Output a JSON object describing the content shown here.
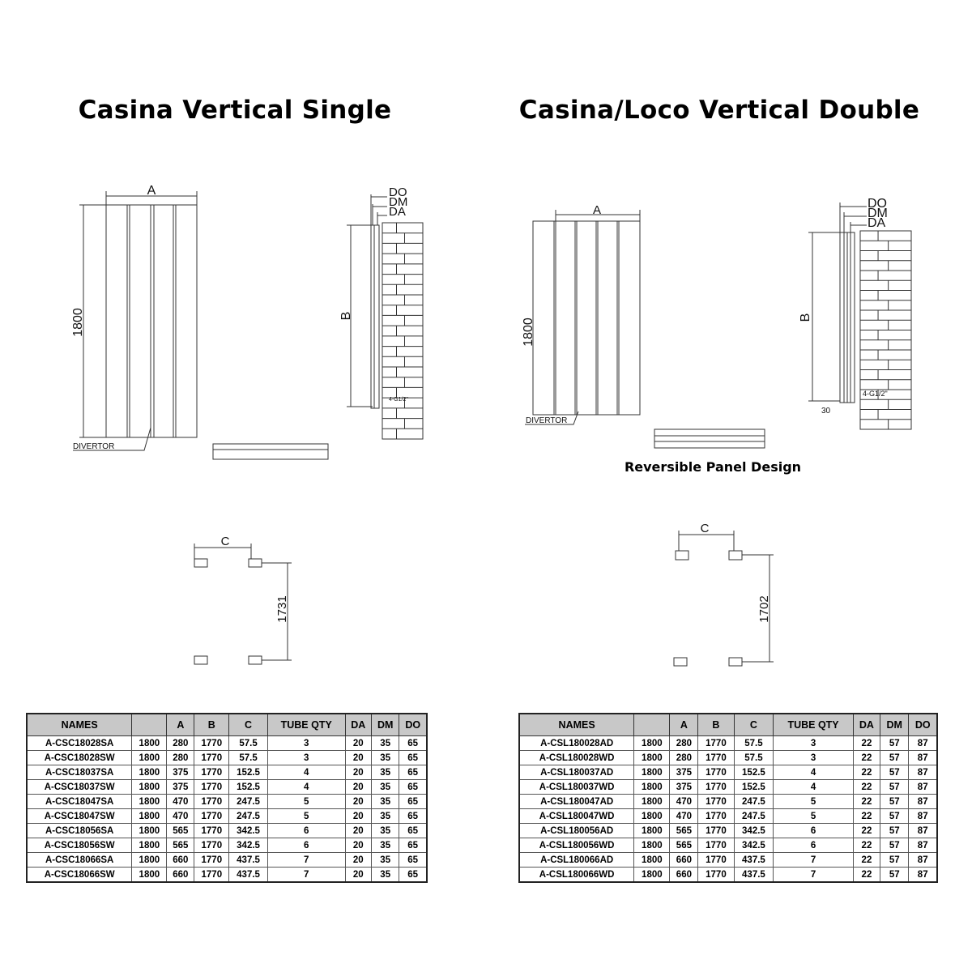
{
  "left": {
    "title": "Casina Vertical Single",
    "labels": {
      "a": "A",
      "height": "1800",
      "divertor": "DIVERTOR",
      "do": "DO",
      "dm": "DM",
      "da": "DA",
      "b": "B",
      "connection": "4-G1/2\"",
      "c": "C",
      "centres": "1731"
    },
    "table": {
      "headers": [
        "NAMES",
        "",
        "A",
        "B",
        "C",
        "TUBE QTY",
        "DA",
        "DM",
        "DO"
      ],
      "rows": [
        [
          "A-CSC18028SA",
          "1800",
          "280",
          "1770",
          "57.5",
          "3",
          "20",
          "35",
          "65"
        ],
        [
          "A-CSC18028SW",
          "1800",
          "280",
          "1770",
          "57.5",
          "3",
          "20",
          "35",
          "65"
        ],
        [
          "A-CSC18037SA",
          "1800",
          "375",
          "1770",
          "152.5",
          "4",
          "20",
          "35",
          "65"
        ],
        [
          "A-CSC18037SW",
          "1800",
          "375",
          "1770",
          "152.5",
          "4",
          "20",
          "35",
          "65"
        ],
        [
          "A-CSC18047SA",
          "1800",
          "470",
          "1770",
          "247.5",
          "5",
          "20",
          "35",
          "65"
        ],
        [
          "A-CSC18047SW",
          "1800",
          "470",
          "1770",
          "247.5",
          "5",
          "20",
          "35",
          "65"
        ],
        [
          "A-CSC18056SA",
          "1800",
          "565",
          "1770",
          "342.5",
          "6",
          "20",
          "35",
          "65"
        ],
        [
          "A-CSC18056SW",
          "1800",
          "565",
          "1770",
          "342.5",
          "6",
          "20",
          "35",
          "65"
        ],
        [
          "A-CSC18066SA",
          "1800",
          "660",
          "1770",
          "437.5",
          "7",
          "20",
          "35",
          "65"
        ],
        [
          "A-CSC18066SW",
          "1800",
          "660",
          "1770",
          "437.5",
          "7",
          "20",
          "35",
          "65"
        ]
      ]
    }
  },
  "right": {
    "title": "Casina/Loco Vertical Double",
    "caption": "Reversible Panel Design",
    "labels": {
      "a": "A",
      "height": "1800",
      "divertor": "DIVERTOR",
      "do": "DO",
      "dm": "DM",
      "da": "DA",
      "b": "B",
      "connection": "4-G1/2\"",
      "offset": "30",
      "c": "C",
      "centres": "1702"
    },
    "table": {
      "headers": [
        "NAMES",
        "",
        "A",
        "B",
        "C",
        "TUBE QTY",
        "DA",
        "DM",
        "DO"
      ],
      "rows": [
        [
          "A-CSL180028AD",
          "1800",
          "280",
          "1770",
          "57.5",
          "3",
          "22",
          "57",
          "87"
        ],
        [
          "A-CSL180028WD",
          "1800",
          "280",
          "1770",
          "57.5",
          "3",
          "22",
          "57",
          "87"
        ],
        [
          "A-CSL180037AD",
          "1800",
          "375",
          "1770",
          "152.5",
          "4",
          "22",
          "57",
          "87"
        ],
        [
          "A-CSL180037WD",
          "1800",
          "375",
          "1770",
          "152.5",
          "4",
          "22",
          "57",
          "87"
        ],
        [
          "A-CSL180047AD",
          "1800",
          "470",
          "1770",
          "247.5",
          "5",
          "22",
          "57",
          "87"
        ],
        [
          "A-CSL180047WD",
          "1800",
          "470",
          "1770",
          "247.5",
          "5",
          "22",
          "57",
          "87"
        ],
        [
          "A-CSL180056AD",
          "1800",
          "565",
          "1770",
          "342.5",
          "6",
          "22",
          "57",
          "87"
        ],
        [
          "A-CSL180056WD",
          "1800",
          "565",
          "1770",
          "342.5",
          "6",
          "22",
          "57",
          "87"
        ],
        [
          "A-CSL180066AD",
          "1800",
          "660",
          "1770",
          "437.5",
          "7",
          "22",
          "57",
          "87"
        ],
        [
          "A-CSL180066WD",
          "1800",
          "660",
          "1770",
          "437.5",
          "7",
          "22",
          "57",
          "87"
        ]
      ]
    }
  }
}
